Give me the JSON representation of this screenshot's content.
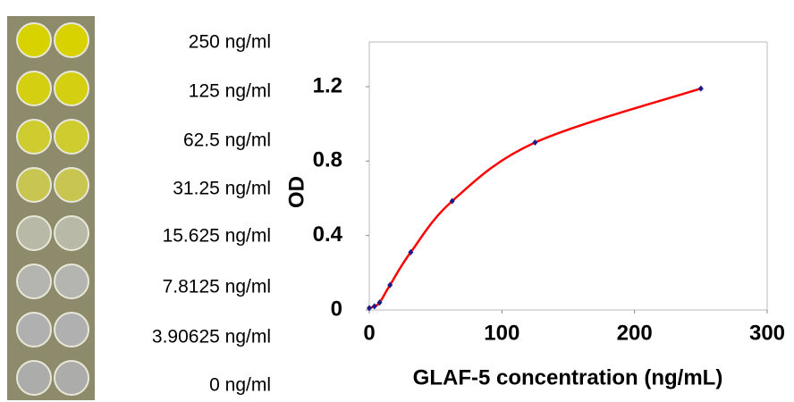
{
  "well_labels": [
    "250 ng/ml",
    "125 ng/ml",
    "62.5 ng/ml",
    "31.25 ng/ml",
    "15.625 ng/ml",
    "7.8125 ng/ml",
    "3.90625 ng/ml",
    "0 ng/ml"
  ],
  "chart_data": {
    "type": "scatter",
    "x_label": "GLAF-5 concentration (ng/mL)",
    "y_label": "OD",
    "x": [
      0,
      3.90625,
      7.8125,
      15.625,
      31.25,
      62.5,
      125,
      250
    ],
    "values": [
      0.01,
      0.02,
      0.04,
      0.134,
      0.31,
      0.585,
      0.9,
      1.19
    ],
    "line_color": "#ff0000",
    "marker_color": "#1a1a8c",
    "xlim": [
      0,
      300
    ],
    "ylim": [
      0,
      1.44
    ],
    "xticks": [
      0,
      100,
      200,
      300
    ],
    "yticks": [
      0,
      0.4,
      0.8,
      1.2
    ]
  }
}
